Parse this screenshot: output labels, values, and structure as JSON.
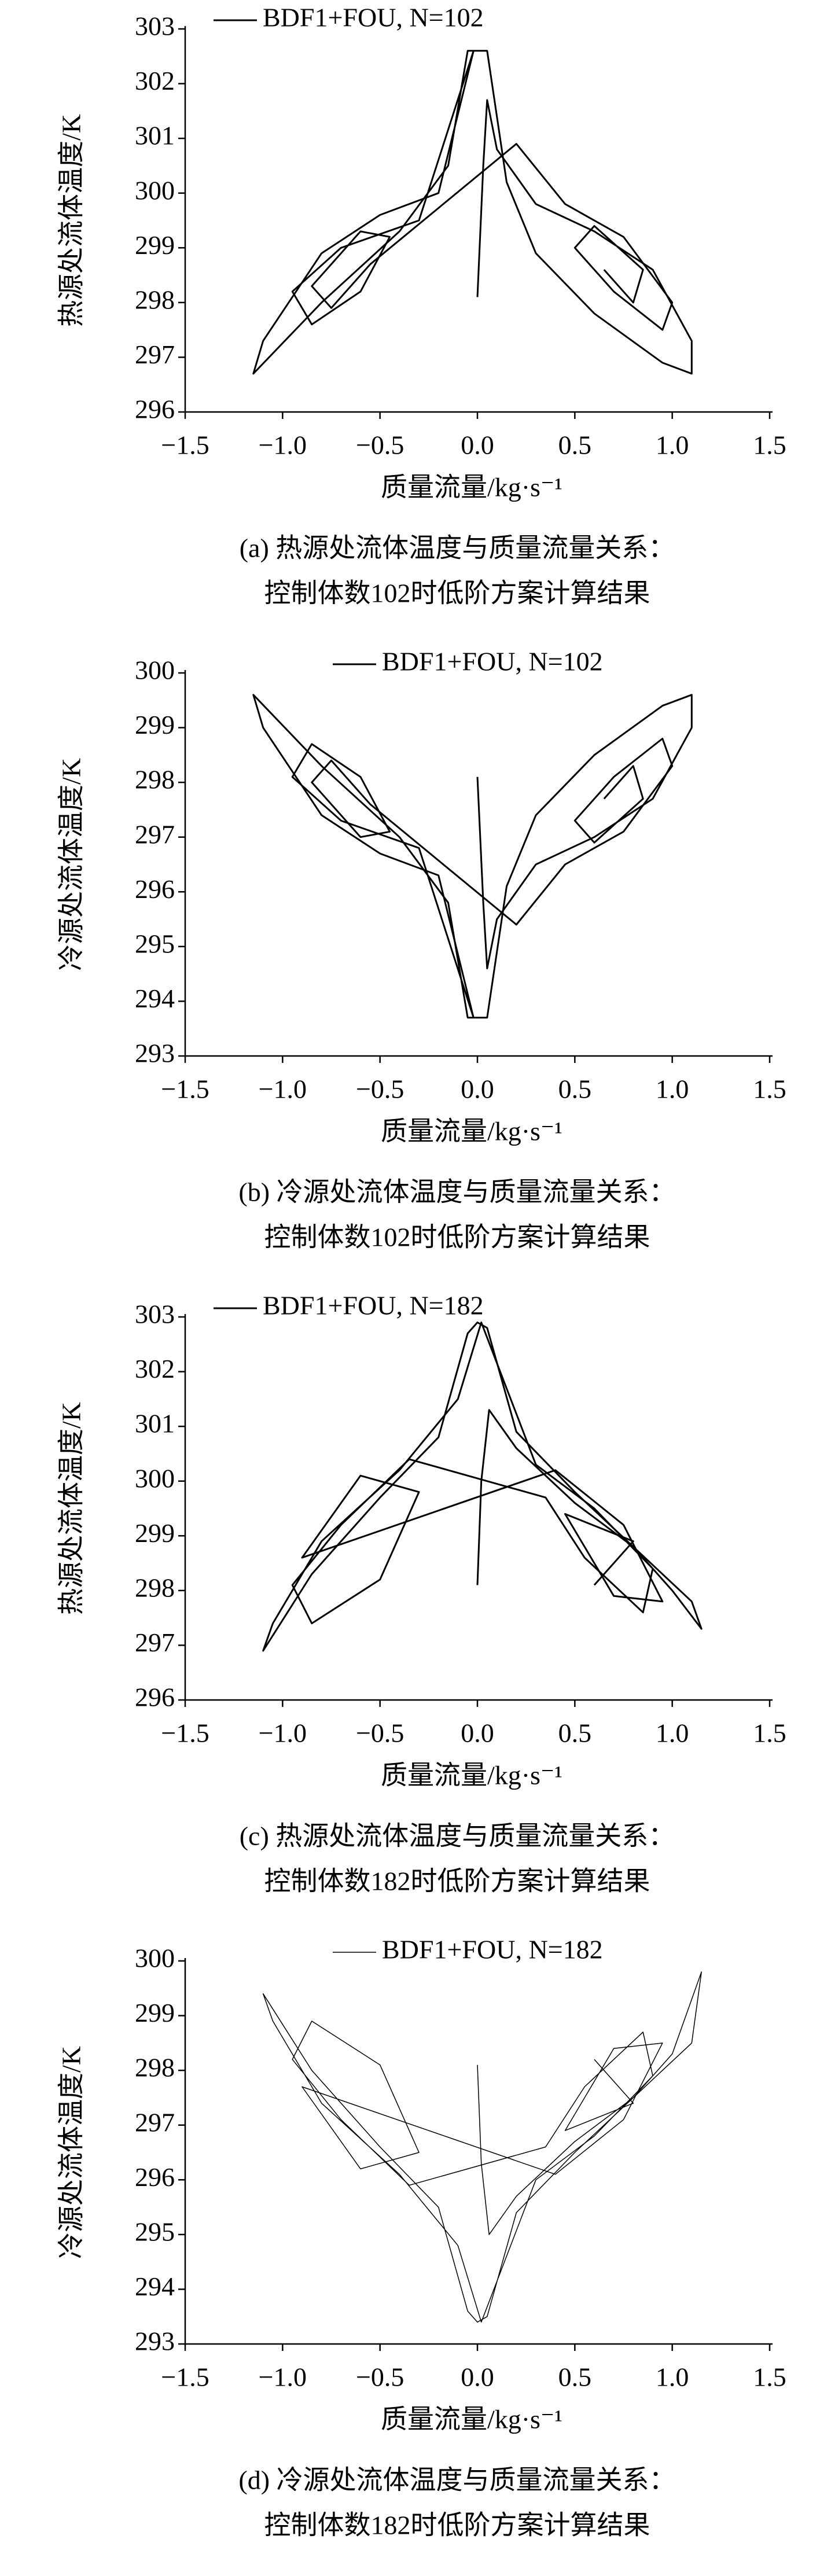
{
  "chart_data": [
    {
      "type": "line",
      "xlabel": "质量流量/kg·s⁻¹",
      "ylabel": "热源处流体温度/K",
      "caption": [
        "(a) 热源处流体温度与质量流量关系：",
        "控制体数102时低阶方案计算结果"
      ],
      "legend": "upper left",
      "linewidth": 3,
      "xlim": [
        -1.5,
        1.5
      ],
      "xticks": [
        {
          "value": -1.5,
          "label": "−1.5"
        },
        {
          "value": -1,
          "label": "−1.0"
        },
        {
          "value": -0.5,
          "label": "−0.5"
        },
        {
          "value": 0,
          "label": "0.0"
        },
        0.5,
        {
          "value": 1,
          "label": "1.0"
        },
        1.5
      ],
      "ylim": [
        296,
        303
      ],
      "yticks": [
        296,
        297,
        298,
        299,
        300,
        301,
        302,
        303
      ],
      "series": [
        {
          "name": "BDF1+FOU, N=102",
          "color": "#000000",
          "x": [
            0,
            0.03,
            0.05,
            0.1,
            0.3,
            0.6,
            0.9,
            1.1,
            1.1,
            0.95,
            0.6,
            0.3,
            0.15,
            0.05,
            -0.05,
            -0.15,
            -0.4,
            -0.8,
            -1.15,
            -1.1,
            -0.8,
            -0.5,
            -0.2,
            -0.02,
            -0.3,
            -0.7,
            -0.95,
            -0.85,
            -0.6,
            -0.45,
            -0.6,
            -0.85,
            -0.75,
            -0.55,
            0.2,
            0.45,
            0.75,
            1.0,
            0.95,
            0.7,
            0.5,
            0.6,
            0.85,
            0.8,
            0.65
          ],
          "values": [
            298.1,
            300.5,
            301.7,
            300.8,
            299.8,
            299.3,
            298.6,
            297.3,
            296.7,
            296.9,
            297.8,
            298.9,
            300.2,
            302.6,
            302.6,
            300.5,
            299.3,
            298.0,
            296.7,
            297.3,
            298.9,
            299.6,
            300.0,
            302.6,
            299.5,
            299.0,
            298.2,
            297.6,
            298.2,
            299.2,
            299.3,
            298.3,
            297.9,
            298.7,
            300.9,
            299.8,
            299.2,
            298.0,
            297.5,
            298.2,
            299.0,
            299.4,
            298.6,
            298.0,
            298.6
          ]
        }
      ]
    },
    {
      "type": "line",
      "xlabel": "质量流量/kg·s⁻¹",
      "ylabel": "冷源处流体温度/K",
      "caption": [
        "(b) 冷源处流体温度与质量流量关系：",
        "控制体数102时低阶方案计算结果"
      ],
      "legend": "upper center",
      "linewidth": 3,
      "xlim": [
        -1.5,
        1.5
      ],
      "xticks": [
        {
          "value": -1.5,
          "label": "−1.5"
        },
        {
          "value": -1,
          "label": "−1.0"
        },
        {
          "value": -0.5,
          "label": "−0.5"
        },
        {
          "value": 0,
          "label": "0.0"
        },
        0.5,
        {
          "value": 1,
          "label": "1.0"
        },
        1.5
      ],
      "ylim": [
        293,
        300
      ],
      "yticks": [
        293,
        294,
        295,
        296,
        297,
        298,
        299,
        300
      ],
      "series": [
        {
          "name": "BDF1+FOU, N=102",
          "color": "#000000",
          "x": [
            0,
            0.03,
            0.05,
            0.1,
            0.3,
            0.6,
            0.9,
            1.1,
            1.1,
            0.95,
            0.6,
            0.3,
            0.15,
            0.05,
            -0.05,
            -0.15,
            -0.4,
            -0.8,
            -1.15,
            -1.1,
            -0.8,
            -0.5,
            -0.2,
            -0.02,
            -0.3,
            -0.7,
            -0.95,
            -0.85,
            -0.6,
            -0.45,
            -0.6,
            -0.85,
            -0.75,
            -0.55,
            0.2,
            0.45,
            0.75,
            1.0,
            0.95,
            0.7,
            0.5,
            0.6,
            0.85,
            0.8,
            0.65
          ],
          "values": [
            298.1,
            295.8,
            294.6,
            295.5,
            296.5,
            297.0,
            297.7,
            299.0,
            299.6,
            299.4,
            298.5,
            297.4,
            296.1,
            293.7,
            293.7,
            295.8,
            297.0,
            298.3,
            299.6,
            299.0,
            297.4,
            296.7,
            296.3,
            293.7,
            296.8,
            297.3,
            298.1,
            298.7,
            298.1,
            297.1,
            297.0,
            298.0,
            298.4,
            297.6,
            295.4,
            296.5,
            297.1,
            298.3,
            298.8,
            298.1,
            297.3,
            296.9,
            297.7,
            298.3,
            297.7
          ]
        }
      ]
    },
    {
      "type": "line",
      "xlabel": "质量流量/kg·s⁻¹",
      "ylabel": "热源处流体温度/K",
      "caption": [
        "(c) 热源处流体温度与质量流量关系：",
        "控制体数182时低阶方案计算结果"
      ],
      "legend": "upper left",
      "linewidth": 3,
      "xlim": [
        -1.5,
        1.5
      ],
      "xticks": [
        {
          "value": -1.5,
          "label": "−1.5"
        },
        {
          "value": -1,
          "label": "−1.0"
        },
        {
          "value": -0.5,
          "label": "−0.5"
        },
        {
          "value": 0,
          "label": "0.0"
        },
        0.5,
        {
          "value": 1,
          "label": "1.0"
        },
        1.5
      ],
      "ylim": [
        296,
        303
      ],
      "yticks": [
        296,
        297,
        298,
        299,
        300,
        301,
        302,
        303
      ],
      "series": [
        {
          "name": "BDF1+FOU, N=182",
          "color": "#000000",
          "x": [
            0,
            0.02,
            0.06,
            0.2,
            0.5,
            0.8,
            1.0,
            1.15,
            1.1,
            0.8,
            0.5,
            0.2,
            0.05,
            0.0,
            -0.05,
            -0.2,
            -0.5,
            -0.85,
            -1.1,
            -1.05,
            -0.8,
            -0.4,
            -0.1,
            0.02,
            0.3,
            0.6,
            0.9,
            0.85,
            0.55,
            0.35,
            -0.35,
            -0.7,
            -0.95,
            -0.85,
            -0.5,
            -0.3,
            -0.6,
            -0.9,
            0.4,
            0.75,
            0.95,
            0.7,
            0.45,
            0.8,
            0.6
          ],
          "values": [
            298.1,
            300.0,
            301.3,
            300.6,
            299.6,
            298.8,
            298.0,
            297.3,
            297.8,
            298.8,
            299.8,
            300.9,
            302.8,
            302.9,
            302.7,
            300.8,
            299.7,
            298.3,
            296.9,
            297.4,
            298.9,
            300.2,
            301.5,
            302.9,
            300.3,
            299.5,
            298.4,
            297.6,
            298.6,
            299.7,
            300.4,
            299.2,
            298.1,
            297.4,
            298.2,
            299.8,
            300.1,
            298.6,
            300.2,
            299.2,
            297.8,
            297.9,
            299.4,
            298.9,
            298.1
          ]
        }
      ]
    },
    {
      "type": "line",
      "xlabel": "质量流量/kg·s⁻¹",
      "ylabel": "冷源处流体温度/K",
      "caption": [
        "(d) 冷源处流体温度与质量流量关系：",
        "控制体数182时低阶方案计算结果"
      ],
      "legend": "upper center",
      "linewidth": 1.5,
      "xlim": [
        -1.5,
        1.5
      ],
      "xticks": [
        {
          "value": -1.5,
          "label": "−1.5"
        },
        {
          "value": -1,
          "label": "−1.0"
        },
        {
          "value": -0.5,
          "label": "−0.5"
        },
        {
          "value": 0,
          "label": "0.0"
        },
        0.5,
        {
          "value": 1,
          "label": "1.0"
        },
        1.5
      ],
      "ylim": [
        293,
        300
      ],
      "yticks": [
        293,
        294,
        295,
        296,
        297,
        298,
        299,
        300
      ],
      "series": [
        {
          "name": "BDF1+FOU, N=182",
          "color": "#000000",
          "x": [
            0,
            0.02,
            0.06,
            0.2,
            0.5,
            0.8,
            1.0,
            1.15,
            1.1,
            0.8,
            0.5,
            0.2,
            0.05,
            0.0,
            -0.05,
            -0.2,
            -0.5,
            -0.85,
            -1.1,
            -1.05,
            -0.8,
            -0.4,
            -0.1,
            0.02,
            0.3,
            0.6,
            0.9,
            0.85,
            0.55,
            0.35,
            -0.35,
            -0.7,
            -0.95,
            -0.85,
            -0.5,
            -0.3,
            -0.6,
            -0.9,
            0.4,
            0.75,
            0.95,
            0.7,
            0.45,
            0.8,
            0.6
          ],
          "values": [
            298.1,
            296.3,
            295.0,
            295.7,
            296.7,
            297.5,
            298.3,
            299.8,
            298.5,
            297.5,
            296.5,
            295.4,
            293.5,
            293.4,
            293.6,
            295.5,
            296.6,
            298.0,
            299.4,
            298.9,
            297.4,
            296.1,
            294.8,
            293.4,
            296.0,
            296.8,
            297.9,
            298.7,
            297.7,
            296.6,
            295.9,
            297.1,
            298.2,
            298.9,
            298.1,
            296.5,
            296.2,
            297.7,
            296.1,
            297.1,
            298.5,
            298.4,
            296.9,
            297.4,
            298.2
          ]
        }
      ]
    }
  ]
}
